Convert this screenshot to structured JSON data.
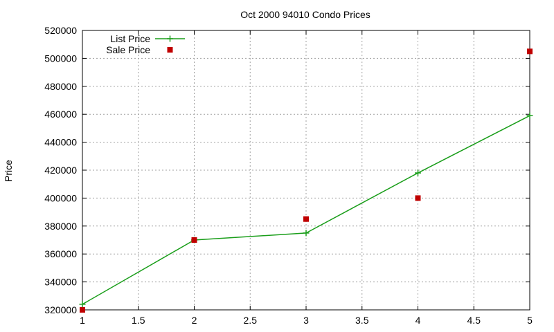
{
  "chart_data": {
    "type": "line",
    "title": "Oct 2000 94010 Condo Prices",
    "xlabel": "",
    "ylabel": "Price",
    "xlim": [
      1,
      5
    ],
    "ylim": [
      320000,
      520000
    ],
    "x_ticks": [
      "1",
      "1.5",
      "2",
      "2.5",
      "3",
      "3.5",
      "4",
      "4.5",
      "5"
    ],
    "y_ticks": [
      "320000",
      "340000",
      "360000",
      "380000",
      "400000",
      "420000",
      "440000",
      "460000",
      "480000",
      "500000",
      "520000"
    ],
    "grid": true,
    "legend_position": "top-left",
    "series": [
      {
        "name": "List Price",
        "style": "line-with-plus-markers",
        "color": "#1a9e1a",
        "x": [
          1,
          2,
          3,
          4,
          5
        ],
        "y": [
          324000,
          370000,
          375000,
          418000,
          459000
        ]
      },
      {
        "name": "Sale Price",
        "style": "square-markers",
        "color": "#c00000",
        "x": [
          1,
          2,
          3,
          4,
          5
        ],
        "y": [
          320000,
          370000,
          385000,
          400000,
          505000
        ]
      }
    ]
  }
}
